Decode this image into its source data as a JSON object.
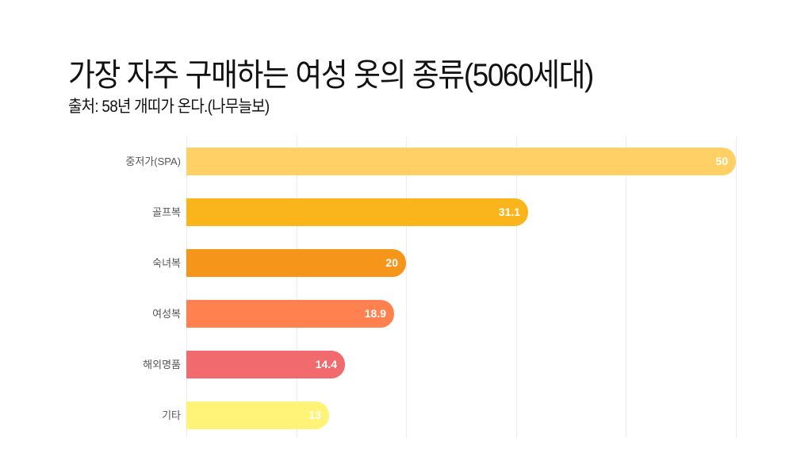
{
  "header": {
    "title": "가장 자주 구매하는 여성 옷의 종류(5060세대)",
    "subtitle": "출처: 58년 개띠가 온다.(나무늘보)"
  },
  "chart_data": {
    "type": "bar",
    "orientation": "horizontal",
    "title": "가장 자주 구매하는 여성 옷의 종류(5060세대)",
    "subtitle": "출처: 58년 개띠가 온다.(나무늘보)",
    "categories": [
      "중저가(SPA)",
      "골프복",
      "숙녀복",
      "여성복",
      "해외명품",
      "기타"
    ],
    "values": [
      50,
      31.1,
      20,
      18.9,
      14.4,
      13
    ],
    "value_labels": [
      "50",
      "31.1",
      "20",
      "18.9",
      "14.4",
      "13"
    ],
    "colors": [
      "#FFD066",
      "#FBB51C",
      "#F5951A",
      "#FF8150",
      "#F06A6E",
      "#FFF478"
    ],
    "xlabel": "",
    "ylabel": "",
    "xlim": [
      0,
      50
    ],
    "gridlines": [
      0,
      10,
      20,
      30,
      40,
      50
    ],
    "grid": true,
    "legend": "none"
  }
}
